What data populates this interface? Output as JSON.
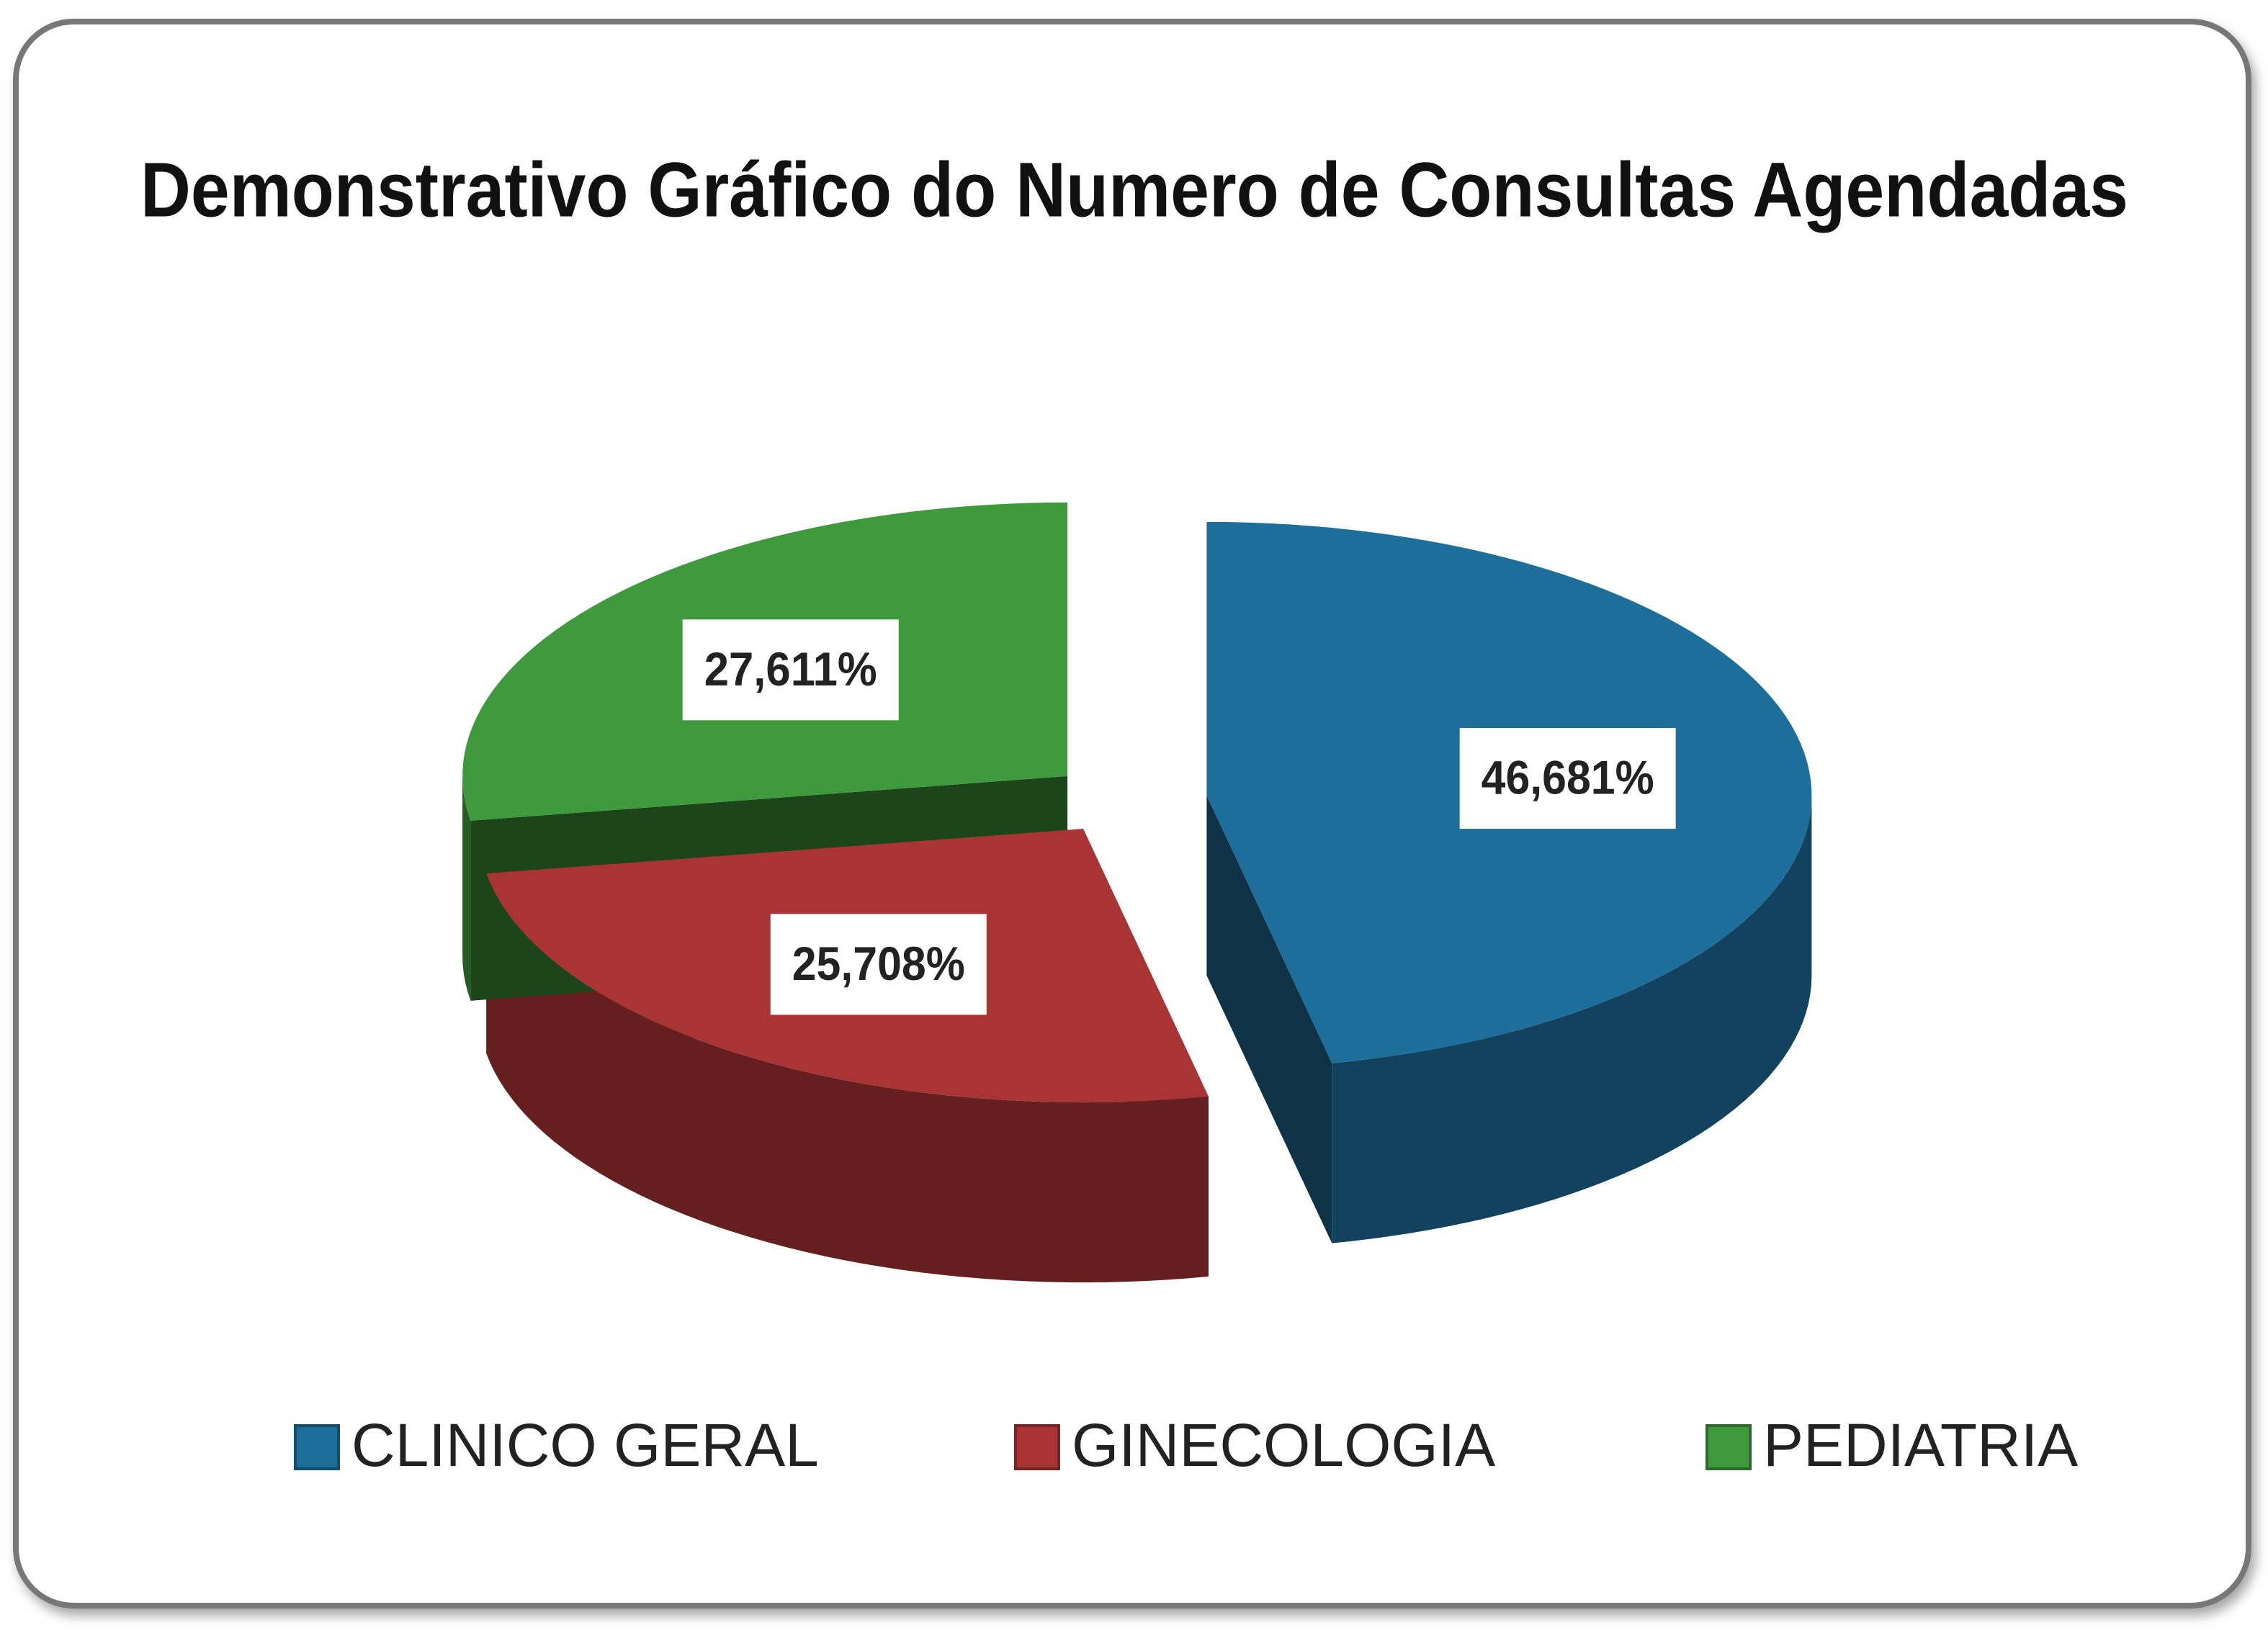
{
  "chart_data": {
    "type": "pie",
    "title": "Demonstrativo Gráfico do Numero de Consultas Agendadas",
    "categories": [
      "CLINICO GERAL",
      "GINECOLOGIA",
      "PEDIATRIA"
    ],
    "values": [
      46.681,
      25.708,
      27.611
    ],
    "value_labels": [
      "46,681%",
      "25,708%",
      "27,611%"
    ],
    "colors": [
      "#1e6e9c",
      "#a83434",
      "#3e9a3c"
    ],
    "legend": "bottom"
  }
}
